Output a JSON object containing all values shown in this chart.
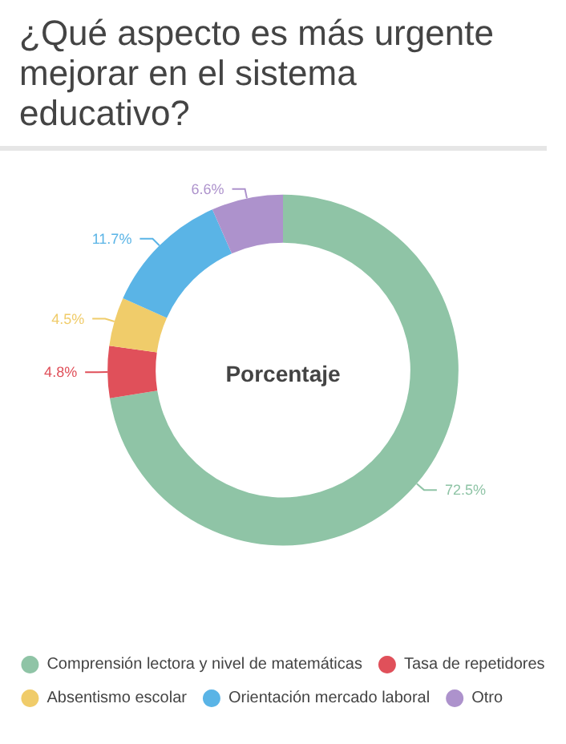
{
  "chart_data": {
    "type": "donut",
    "title": "¿Qué aspecto es más urgente mejorar en el sistema educativo?",
    "annotations": [
      "Porcentaje"
    ],
    "categories": [
      "Comprensión lectora y nivel de matemáticas",
      "Tasa de repetidores",
      "Absentismo escolar",
      "Orientación mercado laboral",
      "Otro"
    ],
    "values": [
      72.5,
      4.8,
      4.5,
      11.7,
      6.6
    ],
    "value_labels": [
      "72.5%",
      "4.8%",
      "4.5%",
      "11.7%",
      "6.6%"
    ],
    "colors": [
      "#8fc4a6",
      "#e0505a",
      "#f0cc6a",
      "#5ab4e6",
      "#ad92cc"
    ],
    "legend": "bottom"
  }
}
